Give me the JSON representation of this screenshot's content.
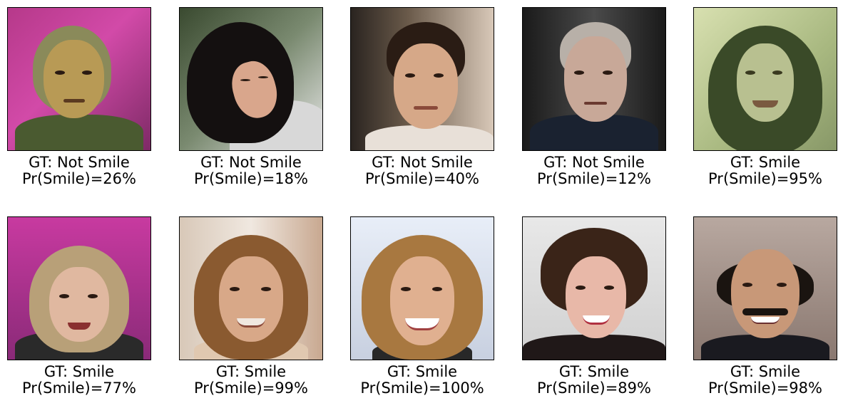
{
  "samples": [
    {
      "gt": "GT: Not Smile",
      "pr": "Pr(Smile)=26%",
      "face_icon": "face-photo-man-gray-hair",
      "colors": {
        "bg": "linear-gradient(135deg,#b6398a,#d24aa8 45%,#7e2a66)",
        "hair": "#8a8a5a",
        "face": "#b89a55",
        "body": "#4a5a30"
      }
    },
    {
      "gt": "GT: Not Smile",
      "pr": "Pr(Smile)=18%",
      "face_icon": "face-photo-woman-dark-hair",
      "colors": {
        "bg": "linear-gradient(135deg,#3a4a30,#7a8a70 50%,#e8e8e8)",
        "hair": "#141010",
        "face": "#d9a68c",
        "body": "#d8d8d8"
      }
    },
    {
      "gt": "GT: Not Smile",
      "pr": "Pr(Smile)=40%",
      "face_icon": "face-photo-man-brown-hair",
      "colors": {
        "bg": "linear-gradient(90deg,#2a2420,#6a5a4a 40%,#d8c8b8)",
        "hair": "#2a1c14",
        "face": "#d6a888",
        "body": "#e8e0d8"
      }
    },
    {
      "gt": "GT: Not Smile",
      "pr": "Pr(Smile)=12%",
      "face_icon": "face-photo-man-dark-suit",
      "colors": {
        "bg": "linear-gradient(90deg,#1a1a1a,#4a4a4a 50%,#1a1a1a)",
        "hair": "#b8b0a8",
        "face": "#c8a898",
        "body": "#1a2230"
      }
    },
    {
      "gt": "GT: Smile",
      "pr": "Pr(Smile)=95%",
      "face_icon": "face-photo-woman-green-tint",
      "colors": {
        "bg": "linear-gradient(135deg,#d8e0b0,#a8b880 60%,#889868)",
        "hair": "#3a4a28",
        "face": "#b8c090",
        "body": "#6a7a48"
      }
    },
    {
      "gt": "GT: Smile",
      "pr": "Pr(Smile)=77%",
      "face_icon": "face-photo-woman-blonde",
      "colors": {
        "bg": "linear-gradient(180deg,#c83aa0,#8a2a78)",
        "hair": "#b8a078",
        "face": "#e0b8a0",
        "body": "#2a2a2a"
      }
    },
    {
      "gt": "GT: Smile",
      "pr": "Pr(Smile)=99%",
      "face_icon": "face-photo-woman-light-brown",
      "colors": {
        "bg": "linear-gradient(90deg,#d8c8b8,#f0e8e0 50%,#c8a890)",
        "hair": "#8a5a30",
        "face": "#d8a888",
        "body": "#e0c8b0"
      }
    },
    {
      "gt": "GT: Smile",
      "pr": "Pr(Smile)=100%",
      "face_icon": "face-photo-woman-blonde-smile",
      "colors": {
        "bg": "linear-gradient(180deg,#e8eef8,#c8d0e0)",
        "hair": "#a87840",
        "face": "#e0b090",
        "body": "#282828"
      }
    },
    {
      "gt": "GT: Smile",
      "pr": "Pr(Smile)=89%",
      "face_icon": "face-photo-woman-dark-curly",
      "colors": {
        "bg": "linear-gradient(180deg,#e8e8e8,#d0d0d0)",
        "hair": "#3a2418",
        "face": "#e8b8a8",
        "body": "#201818"
      }
    },
    {
      "gt": "GT: Smile",
      "pr": "Pr(Smile)=98%",
      "face_icon": "face-photo-man-mustache",
      "colors": {
        "bg": "linear-gradient(180deg,#b8a8a0,#8a7870)",
        "hair": "#1a1410",
        "face": "#c89878",
        "body": "#1a1a20"
      }
    }
  ]
}
